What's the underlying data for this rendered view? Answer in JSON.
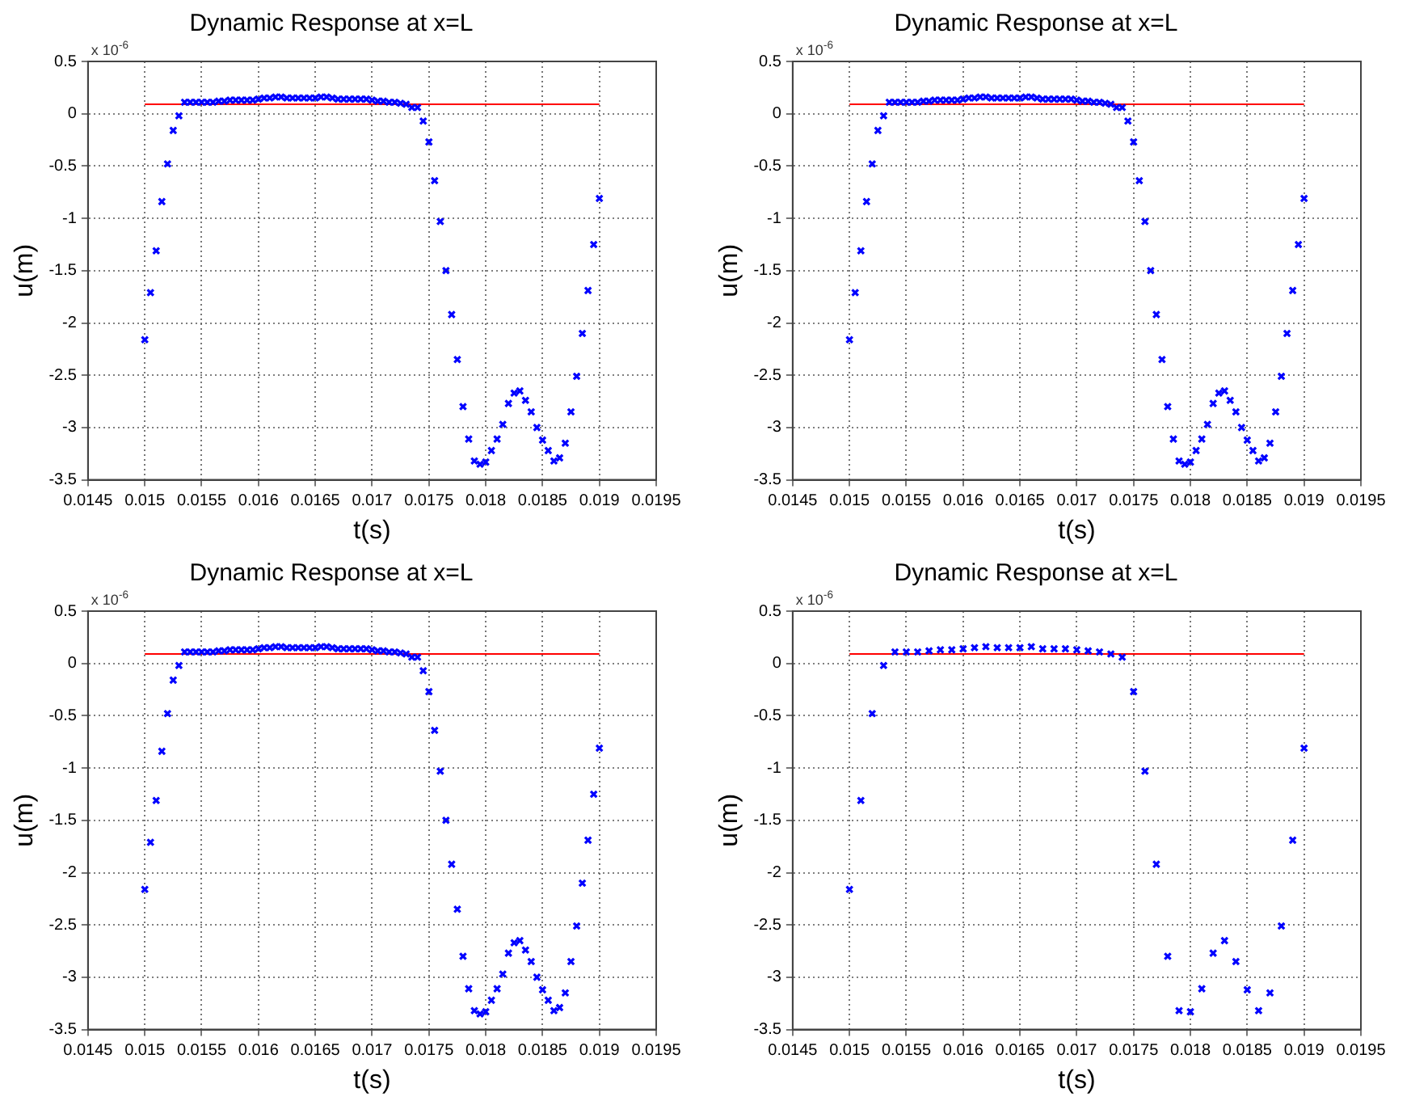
{
  "chart_data": [
    {
      "type": "scatter",
      "title": "Dynamic Response at x=L",
      "xlabel": "t(s)",
      "ylabel": "u(m)",
      "annotations": [
        "x 10$^{-6}$"
      ],
      "xlim": [
        0.0145,
        0.0195
      ],
      "xticks": [
        0.0145,
        0.015,
        0.0155,
        0.016,
        0.0165,
        0.017,
        0.0175,
        0.018,
        0.0185,
        0.019,
        0.0195
      ],
      "ylim": [
        -3.5,
        0.5
      ],
      "yticks": [
        0.5,
        0,
        -0.5,
        -1,
        -1.5,
        -2,
        -2.5,
        -3,
        -3.5
      ],
      "grid": true,
      "series": [
        {
          "marker": "cross",
          "color": "#0000ff",
          "x": [
            0.015,
            0.01505,
            0.0151,
            0.01515,
            0.0152,
            0.01525,
            0.0153,
            0.01535,
            0.0154,
            0.01545,
            0.0155,
            0.01555,
            0.0156,
            0.01565,
            0.0157,
            0.01575,
            0.0158,
            0.01585,
            0.0159,
            0.01595,
            0.016,
            0.01605,
            0.0161,
            0.01615,
            0.0162,
            0.01625,
            0.0163,
            0.01635,
            0.0164,
            0.01645,
            0.0165,
            0.01655,
            0.0166,
            0.01665,
            0.0167,
            0.01675,
            0.0168,
            0.01685,
            0.0169,
            0.01695,
            0.017,
            0.01705,
            0.0171,
            0.01715,
            0.0172,
            0.01725,
            0.0173,
            0.01735,
            0.0174,
            0.01745,
            0.0175,
            0.01755,
            0.0176,
            0.01765,
            0.0177,
            0.01775,
            0.0178,
            0.01785,
            0.0179,
            0.01795,
            0.018,
            0.01805,
            0.0181,
            0.01815,
            0.0182,
            0.01825,
            0.0183,
            0.01835,
            0.0184,
            0.01845,
            0.0185,
            0.01855,
            0.0186,
            0.01865,
            0.0187,
            0.01875,
            0.0188,
            0.01885,
            0.0189,
            0.01895,
            0.019
          ],
          "values": [
            -2.16,
            -1.71,
            -1.31,
            -0.84,
            -0.48,
            -0.16,
            -0.02,
            0.11,
            0.11,
            0.11,
            0.11,
            0.11,
            0.11,
            0.12,
            0.12,
            0.13,
            0.13,
            0.13,
            0.13,
            0.13,
            0.14,
            0.15,
            0.15,
            0.16,
            0.16,
            0.15,
            0.15,
            0.15,
            0.15,
            0.15,
            0.15,
            0.16,
            0.16,
            0.15,
            0.14,
            0.14,
            0.14,
            0.14,
            0.14,
            0.14,
            0.13,
            0.12,
            0.12,
            0.11,
            0.11,
            0.1,
            0.09,
            0.06,
            0.06,
            -0.07,
            -0.27,
            -0.64,
            -1.03,
            -1.5,
            -1.92,
            -2.35,
            -2.8,
            -3.11,
            -3.32,
            -3.35,
            -3.33,
            -3.22,
            -3.11,
            -2.97,
            -2.77,
            -2.67,
            -2.65,
            -2.74,
            -2.85,
            -3.0,
            -3.12,
            -3.22,
            -3.32,
            -3.29,
            -3.15,
            -2.85,
            -2.51,
            -2.1,
            -1.69,
            -1.25,
            -0.81
          ]
        },
        {
          "type": "line",
          "marker": "none",
          "color": "#ff0000",
          "x": [
            0.015,
            0.019
          ],
          "values": [
            0.09,
            0.09
          ]
        }
      ]
    },
    {
      "type": "scatter",
      "title": "Dynamic Response at x=L",
      "xlabel": "t(s)",
      "ylabel": "u(m)",
      "annotations": [
        "x 10$^{-6}$"
      ],
      "xlim": [
        0.0145,
        0.0195
      ],
      "xticks": [
        0.0145,
        0.015,
        0.0155,
        0.016,
        0.0165,
        0.017,
        0.0175,
        0.018,
        0.0185,
        0.019,
        0.0195
      ],
      "ylim": [
        -3.5,
        0.5
      ],
      "yticks": [
        0.5,
        0,
        -0.5,
        -1,
        -1.5,
        -2,
        -2.5,
        -3,
        -3.5
      ],
      "grid": true,
      "series": [
        {
          "marker": "cross",
          "color": "#0000ff",
          "x": [
            0.015,
            0.01505,
            0.0151,
            0.01515,
            0.0152,
            0.01525,
            0.0153,
            0.01535,
            0.0154,
            0.01545,
            0.0155,
            0.01555,
            0.0156,
            0.01565,
            0.0157,
            0.01575,
            0.0158,
            0.01585,
            0.0159,
            0.01595,
            0.016,
            0.01605,
            0.0161,
            0.01615,
            0.0162,
            0.01625,
            0.0163,
            0.01635,
            0.0164,
            0.01645,
            0.0165,
            0.01655,
            0.0166,
            0.01665,
            0.0167,
            0.01675,
            0.0168,
            0.01685,
            0.0169,
            0.01695,
            0.017,
            0.01705,
            0.0171,
            0.01715,
            0.0172,
            0.01725,
            0.0173,
            0.01735,
            0.0174,
            0.01745,
            0.0175,
            0.01755,
            0.0176,
            0.01765,
            0.0177,
            0.01775,
            0.0178,
            0.01785,
            0.0179,
            0.01795,
            0.018,
            0.01805,
            0.0181,
            0.01815,
            0.0182,
            0.01825,
            0.0183,
            0.01835,
            0.0184,
            0.01845,
            0.0185,
            0.01855,
            0.0186,
            0.01865,
            0.0187,
            0.01875,
            0.0188,
            0.01885,
            0.0189,
            0.01895,
            0.019
          ],
          "values": [
            -2.16,
            -1.71,
            -1.31,
            -0.84,
            -0.48,
            -0.16,
            -0.02,
            0.11,
            0.11,
            0.11,
            0.11,
            0.11,
            0.11,
            0.12,
            0.12,
            0.13,
            0.13,
            0.13,
            0.13,
            0.13,
            0.14,
            0.15,
            0.15,
            0.16,
            0.16,
            0.15,
            0.15,
            0.15,
            0.15,
            0.15,
            0.15,
            0.16,
            0.16,
            0.15,
            0.14,
            0.14,
            0.14,
            0.14,
            0.14,
            0.14,
            0.13,
            0.12,
            0.12,
            0.11,
            0.11,
            0.1,
            0.09,
            0.06,
            0.06,
            -0.07,
            -0.27,
            -0.64,
            -1.03,
            -1.5,
            -1.92,
            -2.35,
            -2.8,
            -3.11,
            -3.32,
            -3.35,
            -3.33,
            -3.22,
            -3.11,
            -2.97,
            -2.77,
            -2.67,
            -2.65,
            -2.74,
            -2.85,
            -3.0,
            -3.12,
            -3.22,
            -3.32,
            -3.29,
            -3.15,
            -2.85,
            -2.51,
            -2.1,
            -1.69,
            -1.25,
            -0.81
          ]
        },
        {
          "type": "line",
          "marker": "none",
          "color": "#ff0000",
          "x": [
            0.015,
            0.019
          ],
          "values": [
            0.09,
            0.09
          ]
        }
      ]
    },
    {
      "type": "scatter",
      "title": "Dynamic Response at x=L",
      "xlabel": "t(s)",
      "ylabel": "u(m)",
      "annotations": [
        "x 10$^{-6}$"
      ],
      "xlim": [
        0.0145,
        0.0195
      ],
      "xticks": [
        0.0145,
        0.015,
        0.0155,
        0.016,
        0.0165,
        0.017,
        0.0175,
        0.018,
        0.0185,
        0.019,
        0.0195
      ],
      "ylim": [
        -3.5,
        0.5
      ],
      "yticks": [
        0.5,
        0,
        -0.5,
        -1,
        -1.5,
        -2,
        -2.5,
        -3,
        -3.5
      ],
      "grid": true,
      "series": [
        {
          "marker": "cross",
          "color": "#0000ff",
          "x": [
            0.015,
            0.01505,
            0.0151,
            0.01515,
            0.0152,
            0.01525,
            0.0153,
            0.01535,
            0.0154,
            0.01545,
            0.0155,
            0.01555,
            0.0156,
            0.01565,
            0.0157,
            0.01575,
            0.0158,
            0.01585,
            0.0159,
            0.01595,
            0.016,
            0.01605,
            0.0161,
            0.01615,
            0.0162,
            0.01625,
            0.0163,
            0.01635,
            0.0164,
            0.01645,
            0.0165,
            0.01655,
            0.0166,
            0.01665,
            0.0167,
            0.01675,
            0.0168,
            0.01685,
            0.0169,
            0.01695,
            0.017,
            0.01705,
            0.0171,
            0.01715,
            0.0172,
            0.01725,
            0.0173,
            0.01735,
            0.0174,
            0.01745,
            0.0175,
            0.01755,
            0.0176,
            0.01765,
            0.0177,
            0.01775,
            0.0178,
            0.01785,
            0.0179,
            0.01795,
            0.018,
            0.01805,
            0.0181,
            0.01815,
            0.0182,
            0.01825,
            0.0183,
            0.01835,
            0.0184,
            0.01845,
            0.0185,
            0.01855,
            0.0186,
            0.01865,
            0.0187,
            0.01875,
            0.0188,
            0.01885,
            0.0189,
            0.01895,
            0.019
          ],
          "values": [
            -2.16,
            -1.71,
            -1.31,
            -0.84,
            -0.48,
            -0.16,
            -0.02,
            0.11,
            0.11,
            0.11,
            0.11,
            0.11,
            0.11,
            0.12,
            0.12,
            0.13,
            0.13,
            0.13,
            0.13,
            0.13,
            0.14,
            0.15,
            0.15,
            0.16,
            0.16,
            0.15,
            0.15,
            0.15,
            0.15,
            0.15,
            0.15,
            0.16,
            0.16,
            0.15,
            0.14,
            0.14,
            0.14,
            0.14,
            0.14,
            0.14,
            0.13,
            0.12,
            0.12,
            0.11,
            0.11,
            0.1,
            0.09,
            0.06,
            0.06,
            -0.07,
            -0.27,
            -0.64,
            -1.03,
            -1.5,
            -1.92,
            -2.35,
            -2.8,
            -3.11,
            -3.32,
            -3.35,
            -3.33,
            -3.22,
            -3.11,
            -2.97,
            -2.77,
            -2.67,
            -2.65,
            -2.74,
            -2.85,
            -3.0,
            -3.12,
            -3.22,
            -3.32,
            -3.29,
            -3.15,
            -2.85,
            -2.51,
            -2.1,
            -1.69,
            -1.25,
            -0.81
          ]
        },
        {
          "type": "line",
          "marker": "none",
          "color": "#ff0000",
          "x": [
            0.015,
            0.019
          ],
          "values": [
            0.09,
            0.09
          ]
        }
      ]
    },
    {
      "type": "scatter",
      "title": "Dynamic Response at x=L",
      "xlabel": "t(s)",
      "ylabel": "u(m)",
      "annotations": [
        "x 10$^{-6}$"
      ],
      "xlim": [
        0.0145,
        0.0195
      ],
      "xticks": [
        0.0145,
        0.015,
        0.0155,
        0.016,
        0.0165,
        0.017,
        0.0175,
        0.018,
        0.0185,
        0.019,
        0.0195
      ],
      "ylim": [
        -3.5,
        0.5
      ],
      "yticks": [
        0.5,
        0,
        -0.5,
        -1,
        -1.5,
        -2,
        -2.5,
        -3,
        -3.5
      ],
      "grid": true,
      "series": [
        {
          "marker": "cross",
          "color": "#0000ff",
          "x": [
            0.015,
            0.0151,
            0.0152,
            0.0153,
            0.0154,
            0.0155,
            0.0156,
            0.0157,
            0.0158,
            0.0159,
            0.016,
            0.0161,
            0.0162,
            0.0163,
            0.0164,
            0.0165,
            0.0166,
            0.0167,
            0.0168,
            0.0169,
            0.017,
            0.0171,
            0.0172,
            0.0173,
            0.0174,
            0.0175,
            0.0176,
            0.0177,
            0.0178,
            0.0179,
            0.018,
            0.0181,
            0.0182,
            0.0183,
            0.0184,
            0.0185,
            0.0186,
            0.0187,
            0.0188,
            0.0189,
            0.019
          ],
          "values": [
            -2.16,
            -1.31,
            -0.48,
            -0.02,
            0.11,
            0.11,
            0.11,
            0.12,
            0.13,
            0.13,
            0.14,
            0.15,
            0.16,
            0.15,
            0.15,
            0.15,
            0.16,
            0.14,
            0.14,
            0.14,
            0.13,
            0.12,
            0.11,
            0.09,
            0.06,
            -0.27,
            -1.03,
            -1.92,
            -2.8,
            -3.32,
            -3.33,
            -3.11,
            -2.77,
            -2.65,
            -2.85,
            -3.12,
            -3.32,
            -3.15,
            -2.51,
            -1.69,
            -0.81
          ]
        },
        {
          "type": "line",
          "marker": "none",
          "color": "#ff0000",
          "x": [
            0.015,
            0.019
          ],
          "values": [
            0.09,
            0.09
          ]
        }
      ]
    }
  ]
}
